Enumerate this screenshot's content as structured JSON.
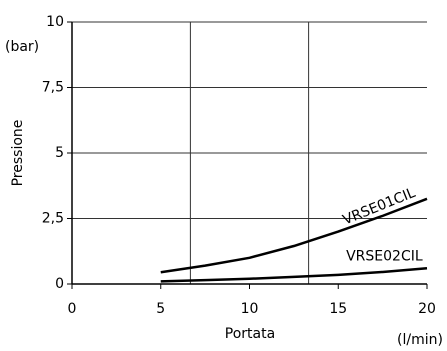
{
  "chart_data": {
    "type": "line",
    "x_label": "Portata",
    "y_label": "Pressione",
    "x_unit": "(l/min)",
    "y_unit": "(bar)",
    "x": [
      5,
      7.5,
      10,
      12.5,
      15,
      17.5,
      20
    ],
    "series": [
      {
        "name": "VRSE01CIL",
        "color": "#000000",
        "values": [
          0.45,
          0.7,
          1.0,
          1.45,
          2.0,
          2.6,
          3.25
        ]
      },
      {
        "name": "VRSE02CIL",
        "color": "#000000",
        "values": [
          0.1,
          0.15,
          0.2,
          0.27,
          0.35,
          0.46,
          0.6
        ]
      }
    ],
    "xlim": [
      0,
      20
    ],
    "xticks": [
      0,
      5,
      10,
      15,
      20
    ],
    "ylim": [
      0,
      10
    ],
    "yticks": [
      0,
      {
        "value": 2.5,
        "label": "2,5"
      },
      5,
      {
        "value": 7.5,
        "label": "7,5"
      },
      10
    ],
    "x_grid_lines": [
      6.67,
      13.33
    ],
    "grid": true
  }
}
